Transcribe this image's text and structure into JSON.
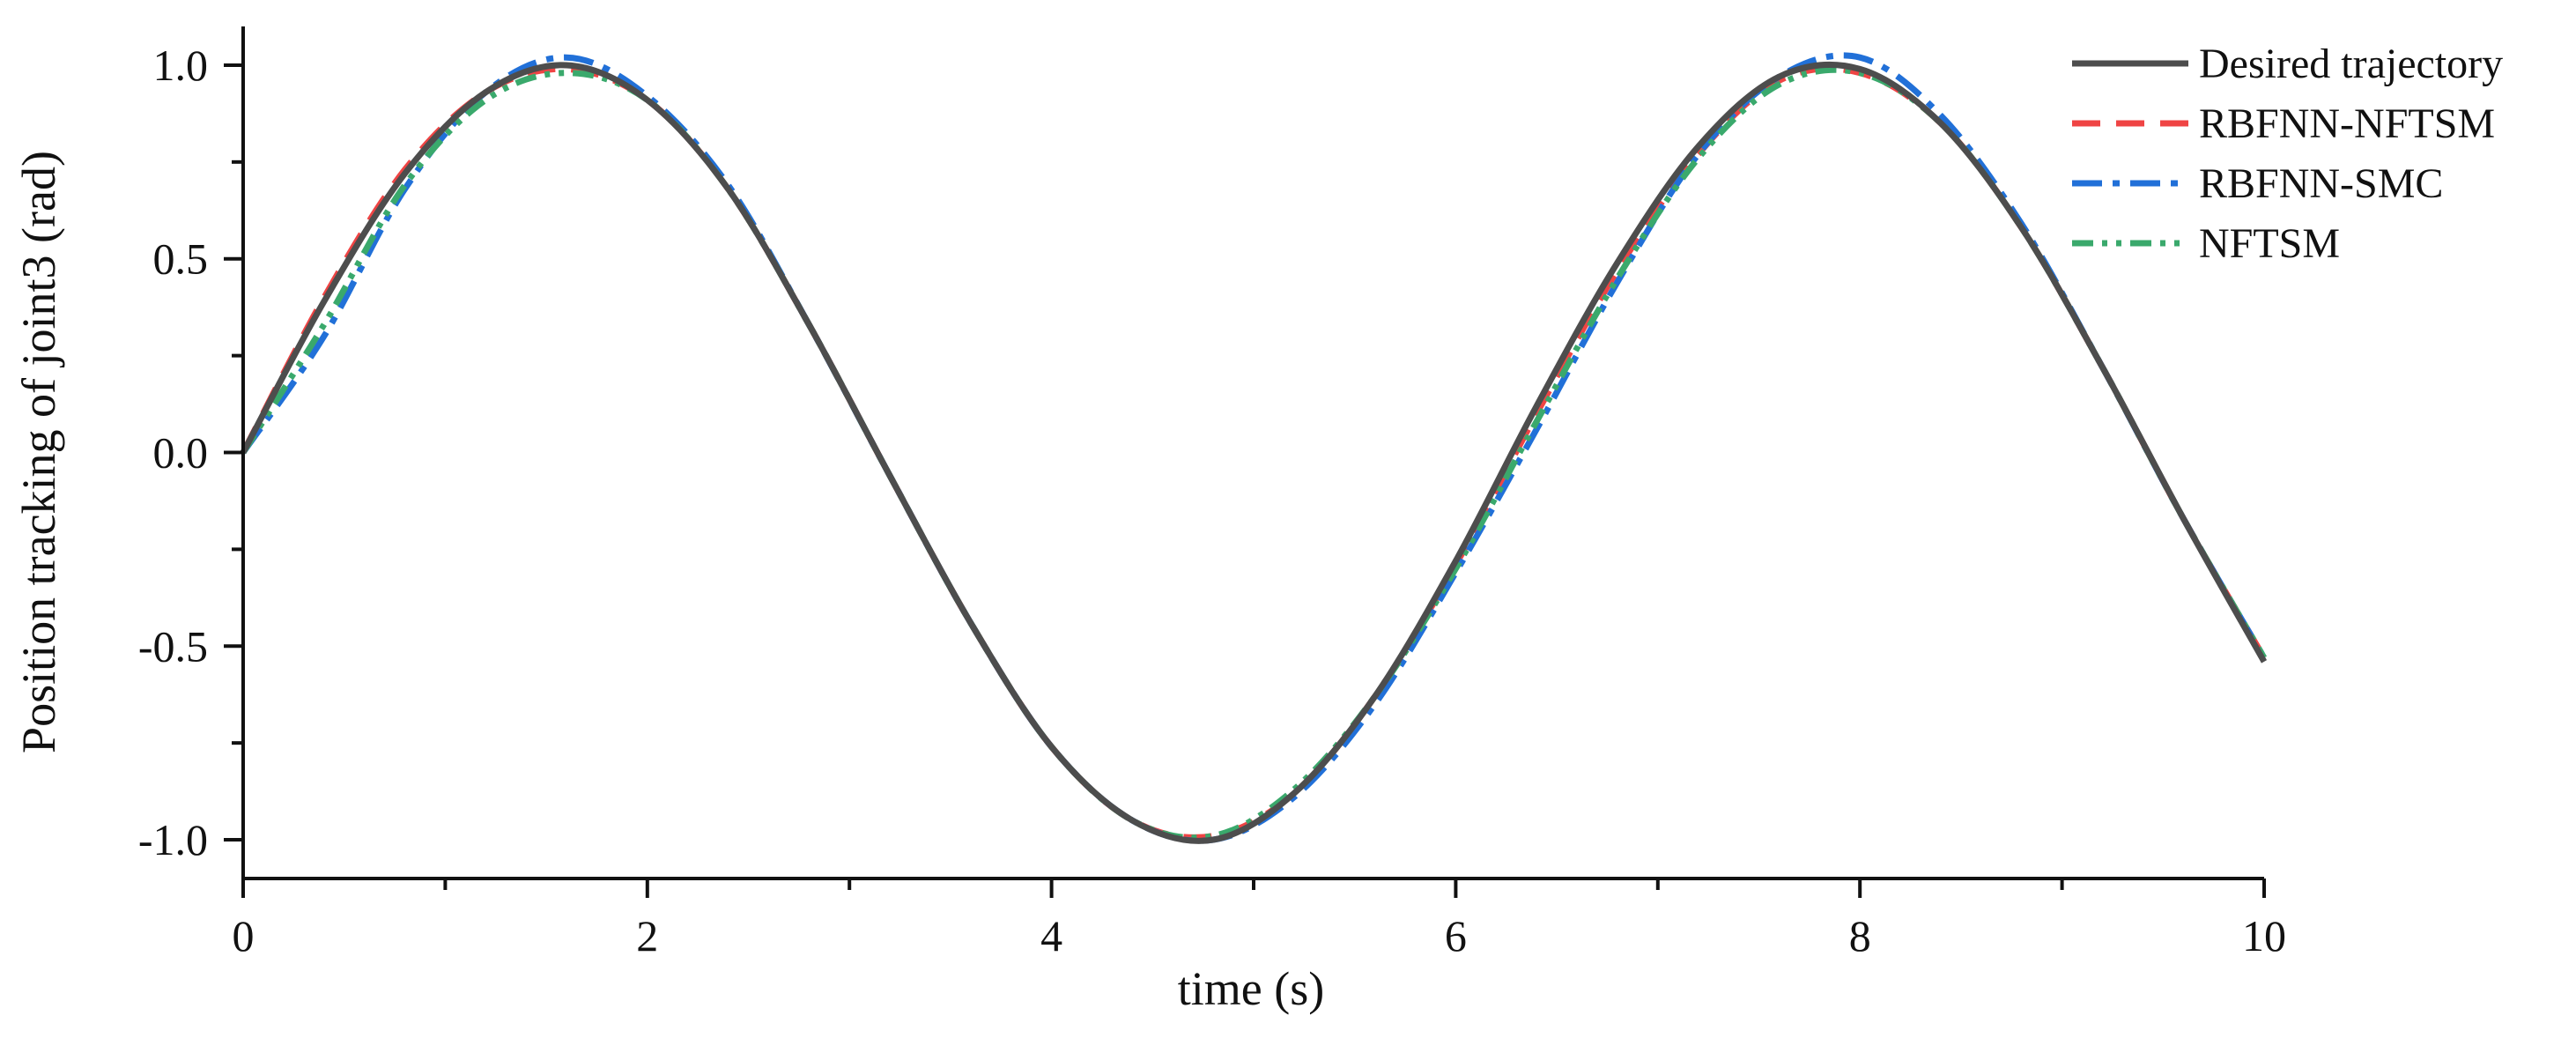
{
  "chart_data": {
    "type": "line",
    "title": "",
    "xlabel": "time (s)",
    "ylabel": "Position tracking of joint3 (rad)",
    "xlim": [
      0,
      10
    ],
    "ylim": [
      -1.1,
      1.1
    ],
    "x_ticks": [
      0,
      2,
      4,
      6,
      8,
      10
    ],
    "x_tick_labels": [
      "0",
      "2",
      "4",
      "6",
      "8",
      "10"
    ],
    "y_ticks": [
      -1.0,
      -0.5,
      0.0,
      0.5,
      1.0
    ],
    "y_tick_labels": [
      "-1.0",
      "-0.5",
      "0.0",
      "0.5",
      "1.0"
    ],
    "grid": false,
    "legend_position": "top-right",
    "x": [
      0.0,
      0.4,
      0.8,
      1.2,
      1.6,
      2.0,
      2.4,
      2.8,
      3.2,
      3.6,
      4.0,
      4.4,
      4.8,
      5.2,
      5.6,
      6.0,
      6.4,
      6.8,
      7.2,
      7.6,
      8.0,
      8.4,
      8.8,
      9.2,
      9.6,
      10.0
    ],
    "series": [
      {
        "name": "Desired trajectory",
        "color": "#4d4d4d",
        "dash": "solid",
        "values": [
          0.0,
          0.39,
          0.72,
          0.93,
          1.0,
          0.91,
          0.68,
          0.33,
          -0.06,
          -0.44,
          -0.76,
          -0.95,
          -1.0,
          -0.88,
          -0.63,
          -0.28,
          0.12,
          0.49,
          0.79,
          0.97,
          0.99,
          0.85,
          0.58,
          0.22,
          -0.17,
          -0.54
        ]
      },
      {
        "name": "RBFNN-NFTSM",
        "color": "#ef4444",
        "dash": "dashed",
        "values": [
          0.0,
          0.4,
          0.73,
          0.93,
          0.99,
          0.91,
          0.68,
          0.33,
          -0.06,
          -0.44,
          -0.76,
          -0.95,
          -0.99,
          -0.88,
          -0.63,
          -0.29,
          0.1,
          0.47,
          0.77,
          0.96,
          0.98,
          0.85,
          0.58,
          0.22,
          -0.17,
          -0.53
        ]
      },
      {
        "name": "RBFNN-SMC",
        "color": "#2170d8",
        "dash": "dashdot",
        "values": [
          0.0,
          0.3,
          0.68,
          0.93,
          1.02,
          0.92,
          0.69,
          0.33,
          -0.06,
          -0.44,
          -0.76,
          -0.95,
          -1.0,
          -0.89,
          -0.65,
          -0.31,
          0.06,
          0.44,
          0.77,
          0.97,
          1.02,
          0.87,
          0.59,
          0.22,
          -0.17,
          -0.53
        ]
      },
      {
        "name": "NFTSM",
        "color": "#3aa96c",
        "dash": "dashdotdot",
        "values": [
          0.0,
          0.33,
          0.69,
          0.91,
          0.98,
          0.91,
          0.68,
          0.33,
          -0.06,
          -0.44,
          -0.76,
          -0.95,
          -0.99,
          -0.87,
          -0.63,
          -0.3,
          0.08,
          0.45,
          0.76,
          0.95,
          0.98,
          0.85,
          0.58,
          0.22,
          -0.17,
          -0.53
        ]
      }
    ]
  }
}
